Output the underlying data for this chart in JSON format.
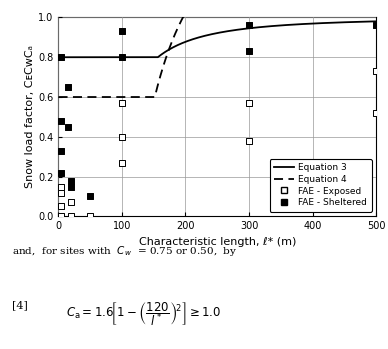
{
  "xlabel": "Characteristic length, ℓ* (m)",
  "ylabel": "Snow load factor, CᴇCᴡCₐ",
  "xlim": [
    0,
    500
  ],
  "ylim": [
    0,
    1.0
  ],
  "xticks": [
    0,
    100,
    200,
    300,
    400,
    500
  ],
  "yticks": [
    0,
    0.2,
    0.4,
    0.6,
    0.8,
    1.0
  ],
  "fae_exposed_points": [
    [
      5,
      0.0
    ],
    [
      5,
      0.05
    ],
    [
      5,
      0.12
    ],
    [
      5,
      0.15
    ],
    [
      20,
      0.0
    ],
    [
      20,
      0.07
    ],
    [
      50,
      0.0
    ],
    [
      100,
      0.57
    ],
    [
      100,
      0.4
    ],
    [
      100,
      0.27
    ],
    [
      300,
      0.57
    ],
    [
      300,
      0.38
    ],
    [
      500,
      0.73
    ],
    [
      500,
      0.52
    ]
  ],
  "fae_sheltered_points": [
    [
      5,
      0.22
    ],
    [
      5,
      0.33
    ],
    [
      5,
      0.48
    ],
    [
      5,
      0.8
    ],
    [
      15,
      0.65
    ],
    [
      15,
      0.45
    ],
    [
      20,
      0.15
    ],
    [
      20,
      0.18
    ],
    [
      50,
      0.1
    ],
    [
      100,
      0.8
    ],
    [
      100,
      0.93
    ],
    [
      300,
      0.83
    ],
    [
      300,
      0.96
    ],
    [
      500,
      0.96
    ]
  ],
  "text_line1": "and,  for sites with  Cᴡ  = 0.75 or 0.50,  by",
  "text_line2_prefix": "[4]",
  "background_color": "#ffffff",
  "grid_color": "#999999",
  "legend_fontsize": 6.5,
  "tick_fontsize": 7,
  "label_fontsize": 8
}
